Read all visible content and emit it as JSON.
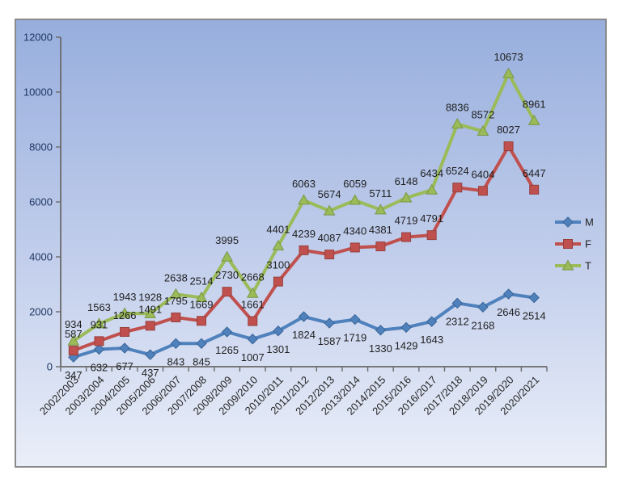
{
  "chart": {
    "frame_border_color": "#8a8a8a",
    "bg_gradient_top": "#97aedd",
    "bg_gradient_bottom": "#e9eef8",
    "axis_color": "#6a6a6a",
    "y_label_color": "#1f3864",
    "x_label_color": "#262626",
    "data_label_color": "#1f1f1f",
    "legend": {
      "position": "right",
      "items": [
        {
          "label": "M",
          "color": "#4f81bd",
          "marker": "diamond"
        },
        {
          "label": "F",
          "color": "#c0504d",
          "marker": "square"
        },
        {
          "label": "T",
          "color": "#9bbb59",
          "marker": "triangle"
        }
      ]
    }
  },
  "chart_data": {
    "type": "line",
    "title": "",
    "xlabel": "",
    "ylabel": "",
    "ylim": [
      0,
      12000
    ],
    "y_tick_step": 2000,
    "y_tick_labels": [
      "0",
      "2000",
      "4000",
      "6000",
      "8000",
      "10000",
      "12000"
    ],
    "grid": false,
    "legend_position": "right",
    "data_labels_shown": true,
    "categories": [
      "2002/2003",
      "2003/2004",
      "2004/2005",
      "2005/2006",
      "2006/2007",
      "2007/2008",
      "2008/2009",
      "2009/2010",
      "2010/2011",
      "2011/2012",
      "2012/2013",
      "2013/2014",
      "2014/2015",
      "2015/2016",
      "2016/2017",
      "2017/2018",
      "2018/2019",
      "2019/2020",
      "2020/2021"
    ],
    "series": [
      {
        "name": "M",
        "color": "#4f81bd",
        "marker": "diamond",
        "marker_stroke": "#3a6597",
        "label_position": "below",
        "values": [
          347,
          632,
          677,
          437,
          843,
          845,
          1265,
          1007,
          1301,
          1824,
          1587,
          1719,
          1330,
          1429,
          1643,
          2312,
          2168,
          2646,
          2514
        ]
      },
      {
        "name": "F",
        "color": "#c0504d",
        "marker": "square",
        "marker_stroke": "#97403e",
        "label_position": "above",
        "values": [
          587,
          931,
          1266,
          1491,
          1795,
          1669,
          2730,
          1661,
          3100,
          4239,
          4087,
          4340,
          4381,
          4719,
          4791,
          6524,
          6404,
          8027,
          6447
        ]
      },
      {
        "name": "T",
        "color": "#9bbb59",
        "marker": "triangle",
        "marker_stroke": "#7a9845",
        "label_position": "above",
        "values": [
          934,
          1563,
          1943,
          1928,
          2638,
          2514,
          3995,
          2668,
          4401,
          6063,
          5674,
          6059,
          5711,
          6148,
          6434,
          8836,
          8572,
          10673,
          8961
        ]
      }
    ]
  }
}
